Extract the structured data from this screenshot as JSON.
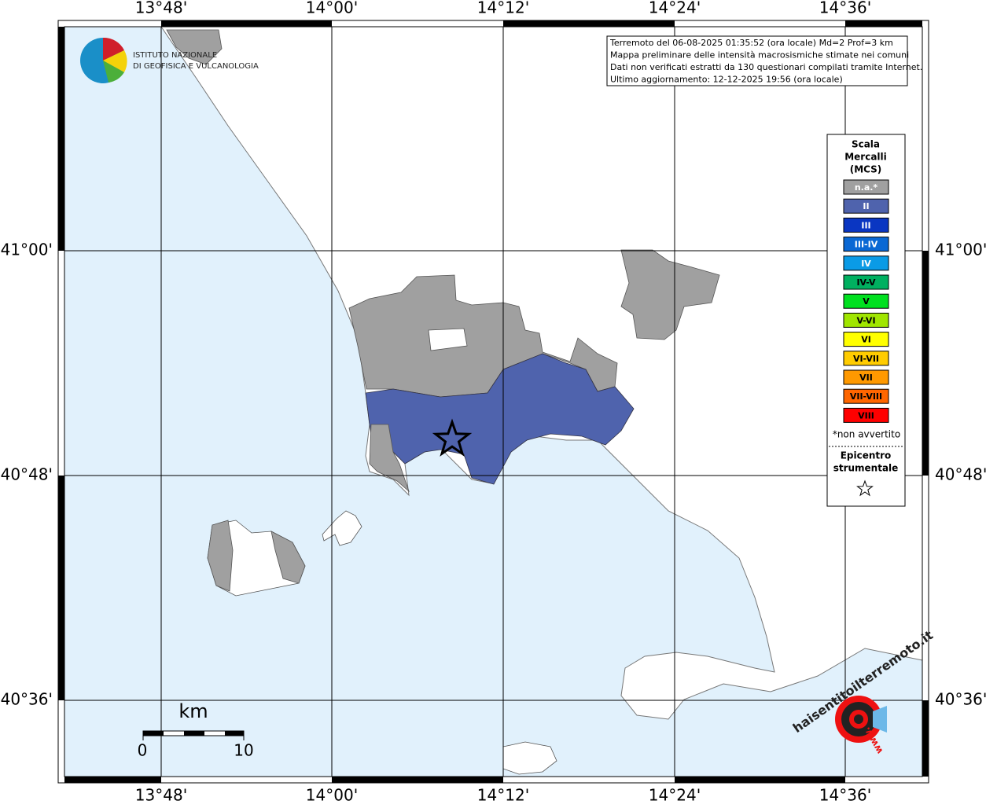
{
  "map": {
    "top_labels": [
      "13°48'",
      "14°00'",
      "14°12'",
      "14°24'",
      "14°36'"
    ],
    "bottom_labels": [
      "13°48'",
      "14°00'",
      "14°12'",
      "14°24'",
      "14°36'"
    ],
    "left_labels": [
      "41°00'",
      "40°48'",
      "40°36'"
    ],
    "right_labels": [
      "41°00'",
      "40°48'",
      "40°36'"
    ],
    "logo": [
      "ISTITUTO NAZIONALE",
      "DI GEOFISICA E VULCANOLOGIA"
    ],
    "info": [
      "Terremoto del 06-08-2025 01:35:52 (ora locale) Md=2 Prof=3 km",
      "Mappa preliminare delle intensità macrosismiche stimate nei comuni",
      "Dati non verificati estratti da 130 questionari compilati tramite Internet.",
      "Ultimo aggiornamento: 12-12-2025 19:56 (ora locale)"
    ],
    "legend": {
      "title": [
        "Scala",
        "Mercalli",
        "(MCS)"
      ],
      "items": [
        {
          "label": "n.a.*",
          "color": "#a0a0a0"
        },
        {
          "label": "II",
          "color": "#4f63ad"
        },
        {
          "label": "III",
          "color": "#0a36c2"
        },
        {
          "label": "III-IV",
          "color": "#0a68d4"
        },
        {
          "label": "IV",
          "color": "#0a9be6"
        },
        {
          "label": "IV-V",
          "color": "#00b060"
        },
        {
          "label": "V",
          "color": "#00e020"
        },
        {
          "label": "V-VI",
          "color": "#a0e600"
        },
        {
          "label": "VI",
          "color": "#ffff00"
        },
        {
          "label": "VI-VII",
          "color": "#ffcc00"
        },
        {
          "label": "VII",
          "color": "#ff9900"
        },
        {
          "label": "VII-VIII",
          "color": "#ff6600"
        },
        {
          "label": "VIII",
          "color": "#ff0000"
        }
      ],
      "note": "*non avvertito",
      "epicenter": [
        "Epicentro",
        "strumentale"
      ]
    },
    "scale_bar": {
      "unit": "km",
      "start": "0",
      "end": "10"
    },
    "badge": {
      "text": "haisentitoilterremoto.it",
      "www": "www."
    }
  }
}
